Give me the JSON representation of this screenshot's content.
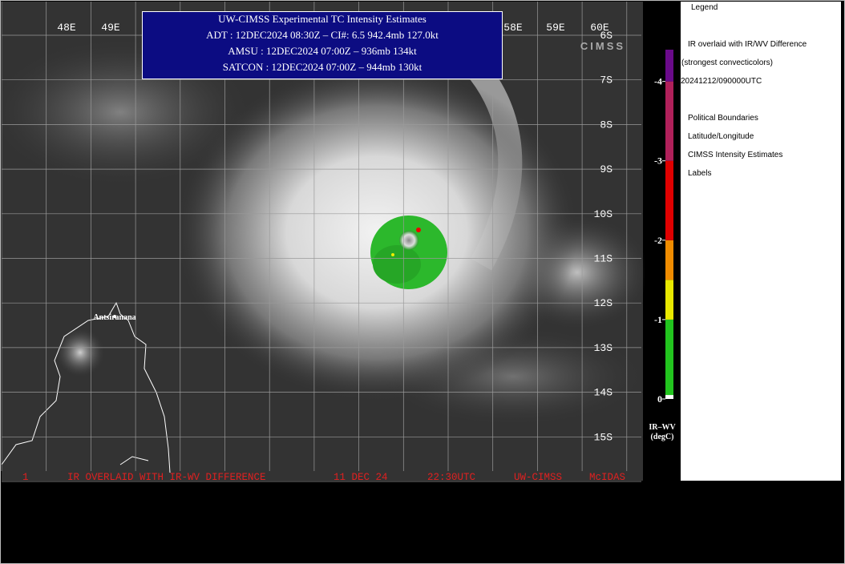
{
  "map": {
    "lon_labels": [
      "48E",
      "49E",
      "58E",
      "59E",
      "60E"
    ],
    "lat_labels": [
      "6S",
      "7S",
      "8S",
      "9S",
      "10S",
      "11S",
      "12S",
      "13S",
      "14S",
      "15S"
    ],
    "place": "Antsiranana",
    "logo": "CIMSS"
  },
  "info_box": {
    "title": "UW-CIMSS Experimental TC Intensity Estimates",
    "lines": [
      "ADT : 12DEC2024 08:30Z –  CI#: 6.5  942.4mb  127.0kt",
      "AMSU : 12DEC2024 07:00Z –  936mb  134kt",
      "SATCON : 12DEC2024 07:00Z –  944mb  130kt"
    ]
  },
  "footer": [
    "1",
    "IR OVERLAID WITH IR-WV DIFFERENCE",
    "11 DEC 24",
    "22:30UTC",
    "UW-CIMSS",
    "McIDAS"
  ],
  "colorbar": {
    "lim": [
      -4.4,
      0
    ],
    "ticks": [
      -4,
      -3,
      -2,
      -1,
      0
    ],
    "label": [
      "IR–WV",
      "(degC)"
    ],
    "segments": [
      {
        "from": 0,
        "to": -0.05,
        "color": "#ffffff"
      },
      {
        "from": -0.05,
        "to": -1,
        "color": "#22c41e"
      },
      {
        "from": -1,
        "to": -1.5,
        "color": "#e8e800"
      },
      {
        "from": -1.5,
        "to": -2,
        "color": "#f08c00"
      },
      {
        "from": -2,
        "to": -3,
        "color": "#e00000"
      },
      {
        "from": -3,
        "to": -4,
        "color": "#b0205a"
      },
      {
        "from": -4,
        "to": -4.4,
        "color": "#6a0a8a"
      }
    ]
  },
  "legend": {
    "title": "Legend",
    "items": [
      "IR overlaid with IR/WV Difference",
      "(strongest convecticolors)",
      "20241212/090000UTC",
      "Political Boundaries",
      "Latitude/Longitude",
      "CIMSS Intensity Estimates",
      "Labels"
    ]
  }
}
